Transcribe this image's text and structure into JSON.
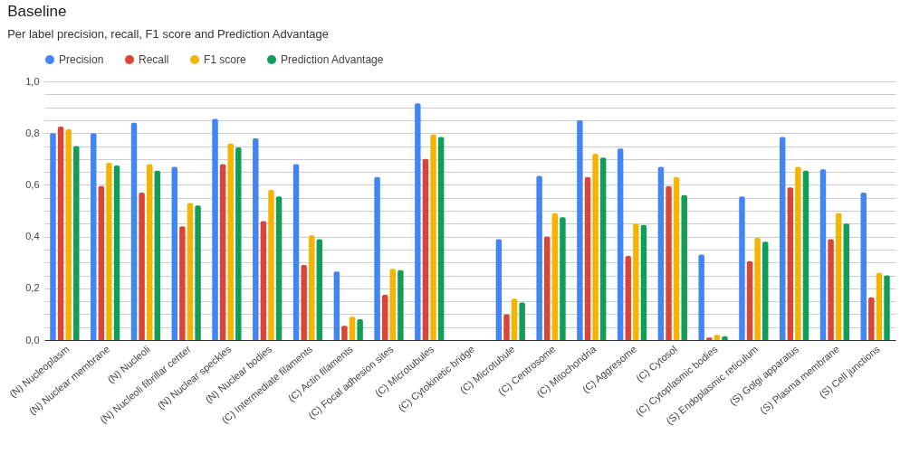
{
  "chart_data": {
    "type": "bar",
    "title": "Baseline",
    "subtitle": "Per label precision, recall, F1 score and Prediction Advantage",
    "categories": [
      "(N) Nucleoplasm",
      "(N) Nuclear membrane",
      "(N) Nucleoli",
      "(N) Nucleoli fibrillar center",
      "(N) Nuclear speckles",
      "(N) Nuclear bodies",
      "(C) Intermediate filaments",
      "(C) Actin filaments",
      "(C) Focal adhesion sites",
      "(C) Microtubules",
      "(C) Cytokinetic bridge",
      "(C) Microtubule",
      "(C) Centrosome",
      "(C) Mitochondria",
      "(C) Aggresome",
      "(C) Cytosol",
      "(C) Cytoplasmic bodies",
      "(S) Endoplasmic reticulum",
      "(S) Golgi apparatus",
      "(S) Plasma membrane",
      "(S) Cell junctions"
    ],
    "series": [
      {
        "name": "Precision",
        "color": "#4285f4",
        "values": [
          0.8,
          0.8,
          0.84,
          0.67,
          0.855,
          0.78,
          0.68,
          0.265,
          0.63,
          0.915,
          null,
          0.39,
          0.635,
          0.85,
          0.74,
          0.67,
          0.33,
          0.555,
          0.785,
          0.66,
          0.57
        ]
      },
      {
        "name": "Recall",
        "color": "#db4437",
        "values": [
          0.825,
          0.595,
          0.57,
          0.44,
          0.68,
          0.46,
          0.29,
          0.055,
          0.175,
          0.7,
          null,
          0.1,
          0.4,
          0.63,
          0.325,
          0.595,
          0.01,
          0.305,
          0.59,
          0.39,
          0.165
        ]
      },
      {
        "name": "F1 score",
        "color": "#f4b400",
        "values": [
          0.815,
          0.685,
          0.68,
          0.53,
          0.76,
          0.58,
          0.405,
          0.09,
          0.275,
          0.795,
          null,
          0.16,
          0.49,
          0.72,
          0.45,
          0.63,
          0.02,
          0.395,
          0.67,
          0.49,
          0.26
        ]
      },
      {
        "name": "Prediction Advantage",
        "color": "#0f9d58",
        "values": [
          0.75,
          0.675,
          0.655,
          0.52,
          0.745,
          0.555,
          0.39,
          0.08,
          0.27,
          0.785,
          null,
          0.145,
          0.475,
          0.705,
          0.445,
          0.56,
          0.015,
          0.38,
          0.655,
          0.45,
          0.25
        ]
      }
    ],
    "ylim": [
      0,
      1
    ],
    "yticks": [
      {
        "value": 0,
        "label": "0,0"
      },
      {
        "value": 0.05,
        "label": null
      },
      {
        "value": 0.1,
        "label": null
      },
      {
        "value": 0.15,
        "label": null
      },
      {
        "value": 0.2,
        "label": "0,2"
      },
      {
        "value": 0.25,
        "label": null
      },
      {
        "value": 0.3,
        "label": null
      },
      {
        "value": 0.35,
        "label": null
      },
      {
        "value": 0.4,
        "label": "0,4"
      },
      {
        "value": 0.45,
        "label": null
      },
      {
        "value": 0.5,
        "label": null
      },
      {
        "value": 0.55,
        "label": null
      },
      {
        "value": 0.6,
        "label": "0,6"
      },
      {
        "value": 0.65,
        "label": null
      },
      {
        "value": 0.7,
        "label": null
      },
      {
        "value": 0.75,
        "label": null
      },
      {
        "value": 0.8,
        "label": "0,8"
      },
      {
        "value": 0.85,
        "label": null
      },
      {
        "value": 0.9,
        "label": null
      },
      {
        "value": 0.95,
        "label": null
      },
      {
        "value": 1,
        "label": "1,0"
      }
    ],
    "grid": true,
    "legend": "top"
  }
}
